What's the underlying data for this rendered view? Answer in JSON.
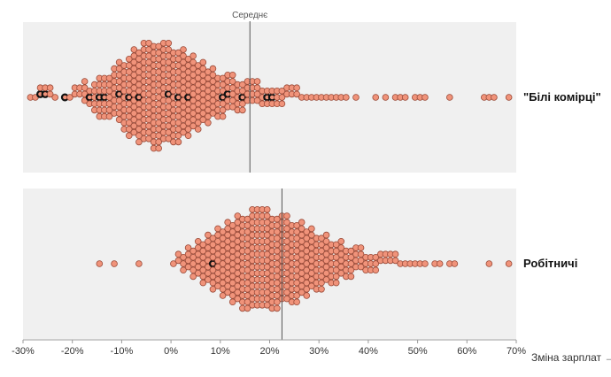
{
  "chart_data": {
    "type": "beeswarm",
    "xlabel": "Зміна зарплат →",
    "xlim": [
      -30,
      70
    ],
    "ticks": [
      "-30%",
      "-20%",
      "-10%",
      "0%",
      "10%",
      "20%",
      "30%",
      "40%",
      "50%",
      "60%",
      "70%"
    ],
    "median_label": "Середнє",
    "groups": [
      {
        "name": "\"Білі комірці\"",
        "median": 16,
        "counts": [
          0,
          1,
          1,
          2,
          2,
          2,
          1,
          0,
          1,
          1,
          2,
          2,
          4,
          3,
          5,
          7,
          7,
          7,
          8,
          10,
          11,
          13,
          14,
          15,
          16,
          16,
          17,
          17,
          16,
          16,
          15,
          15,
          14,
          13,
          12,
          11,
          10,
          9,
          8,
          7,
          7,
          6,
          6,
          5,
          5,
          4,
          4,
          4,
          3,
          3,
          3,
          3,
          3,
          2,
          2,
          2,
          1,
          1,
          1,
          1,
          1,
          1,
          1,
          1,
          1,
          1,
          0,
          1,
          0,
          0,
          0,
          1,
          0,
          1,
          0,
          1,
          1,
          1,
          0,
          1,
          1,
          1,
          0,
          0,
          0,
          0,
          1,
          0,
          0,
          0,
          0,
          0,
          0,
          1,
          1,
          1,
          0,
          0,
          1,
          0
        ],
        "highlighted": [
          -27,
          -26,
          -22,
          -17,
          -15,
          -14,
          -11,
          -9.5,
          -7.5,
          -1.5,
          1,
          3,
          9.5,
          10.5,
          13.5,
          14,
          19,
          19.5
        ]
      },
      {
        "name": "Робітничі",
        "median": 22.5,
        "counts": [
          0,
          0,
          0,
          0,
          0,
          0,
          0,
          0,
          0,
          0,
          0,
          0,
          0,
          0,
          0,
          1,
          0,
          0,
          1,
          0,
          0,
          0,
          0,
          1,
          0,
          0,
          0,
          0,
          0,
          0,
          1,
          2,
          3,
          4,
          5,
          6,
          7,
          8,
          9,
          10,
          11,
          12,
          13,
          14,
          15,
          15,
          16,
          16,
          16,
          16,
          15,
          15,
          14,
          14,
          13,
          13,
          12,
          11,
          10,
          9,
          9,
          8,
          7,
          7,
          6,
          5,
          5,
          4,
          4,
          3,
          3,
          3,
          2,
          2,
          2,
          2,
          1,
          1,
          1,
          1,
          1,
          1,
          0,
          1,
          1,
          0,
          1,
          1,
          0,
          0,
          0,
          0,
          0,
          0,
          1,
          0,
          0,
          0,
          1,
          0
        ],
        "highlighted": [
          8
        ]
      }
    ]
  }
}
